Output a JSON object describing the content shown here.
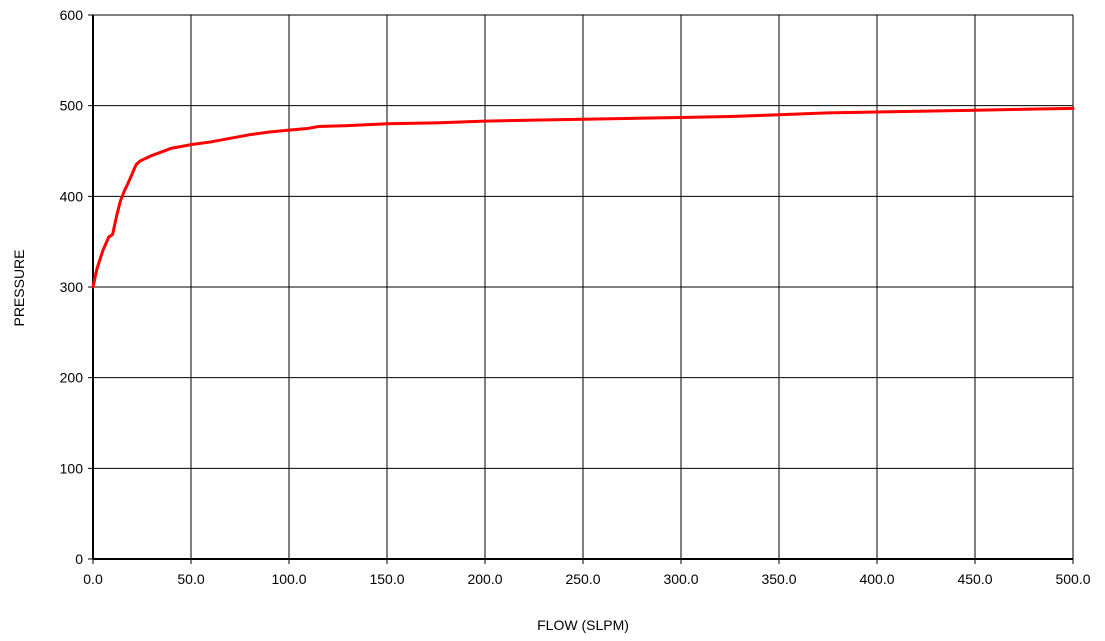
{
  "chart_data": {
    "type": "line",
    "title": "",
    "xlabel": "FLOW (SLPM)",
    "ylabel": "PRESSURE",
    "xlim": [
      0,
      500
    ],
    "ylim": [
      0,
      600
    ],
    "x_ticks": [
      0,
      50,
      100,
      150,
      200,
      250,
      300,
      350,
      400,
      450,
      500
    ],
    "x_tick_labels": [
      "0.0",
      "50.0",
      "100.0",
      "150.0",
      "200.0",
      "250.0",
      "300.0",
      "350.0",
      "400.0",
      "450.0",
      "500.0"
    ],
    "y_ticks": [
      0,
      100,
      200,
      300,
      400,
      500,
      600
    ],
    "y_tick_labels": [
      "0",
      "100",
      "200",
      "300",
      "400",
      "500",
      "600"
    ],
    "grid": true,
    "legend": "none",
    "series": [
      {
        "color": "#ff0000",
        "x": [
          0,
          2,
          5,
          8,
          10,
          12,
          14,
          16,
          18,
          20,
          22,
          24,
          27,
          30,
          35,
          40,
          45,
          50,
          60,
          70,
          80,
          90,
          100,
          110,
          115,
          130,
          150,
          175,
          200,
          225,
          250,
          275,
          300,
          325,
          350,
          375,
          400,
          425,
          450,
          475,
          500
        ],
        "y": [
          300,
          320,
          340,
          355,
          358,
          378,
          395,
          406,
          415,
          425,
          435,
          439,
          442,
          445,
          449,
          453,
          455,
          457,
          460,
          464,
          468,
          471,
          473,
          475,
          477,
          478,
          480,
          481,
          483,
          484,
          485,
          486,
          487,
          488,
          490,
          492,
          493,
          494,
          495,
          496,
          497
        ]
      }
    ]
  }
}
